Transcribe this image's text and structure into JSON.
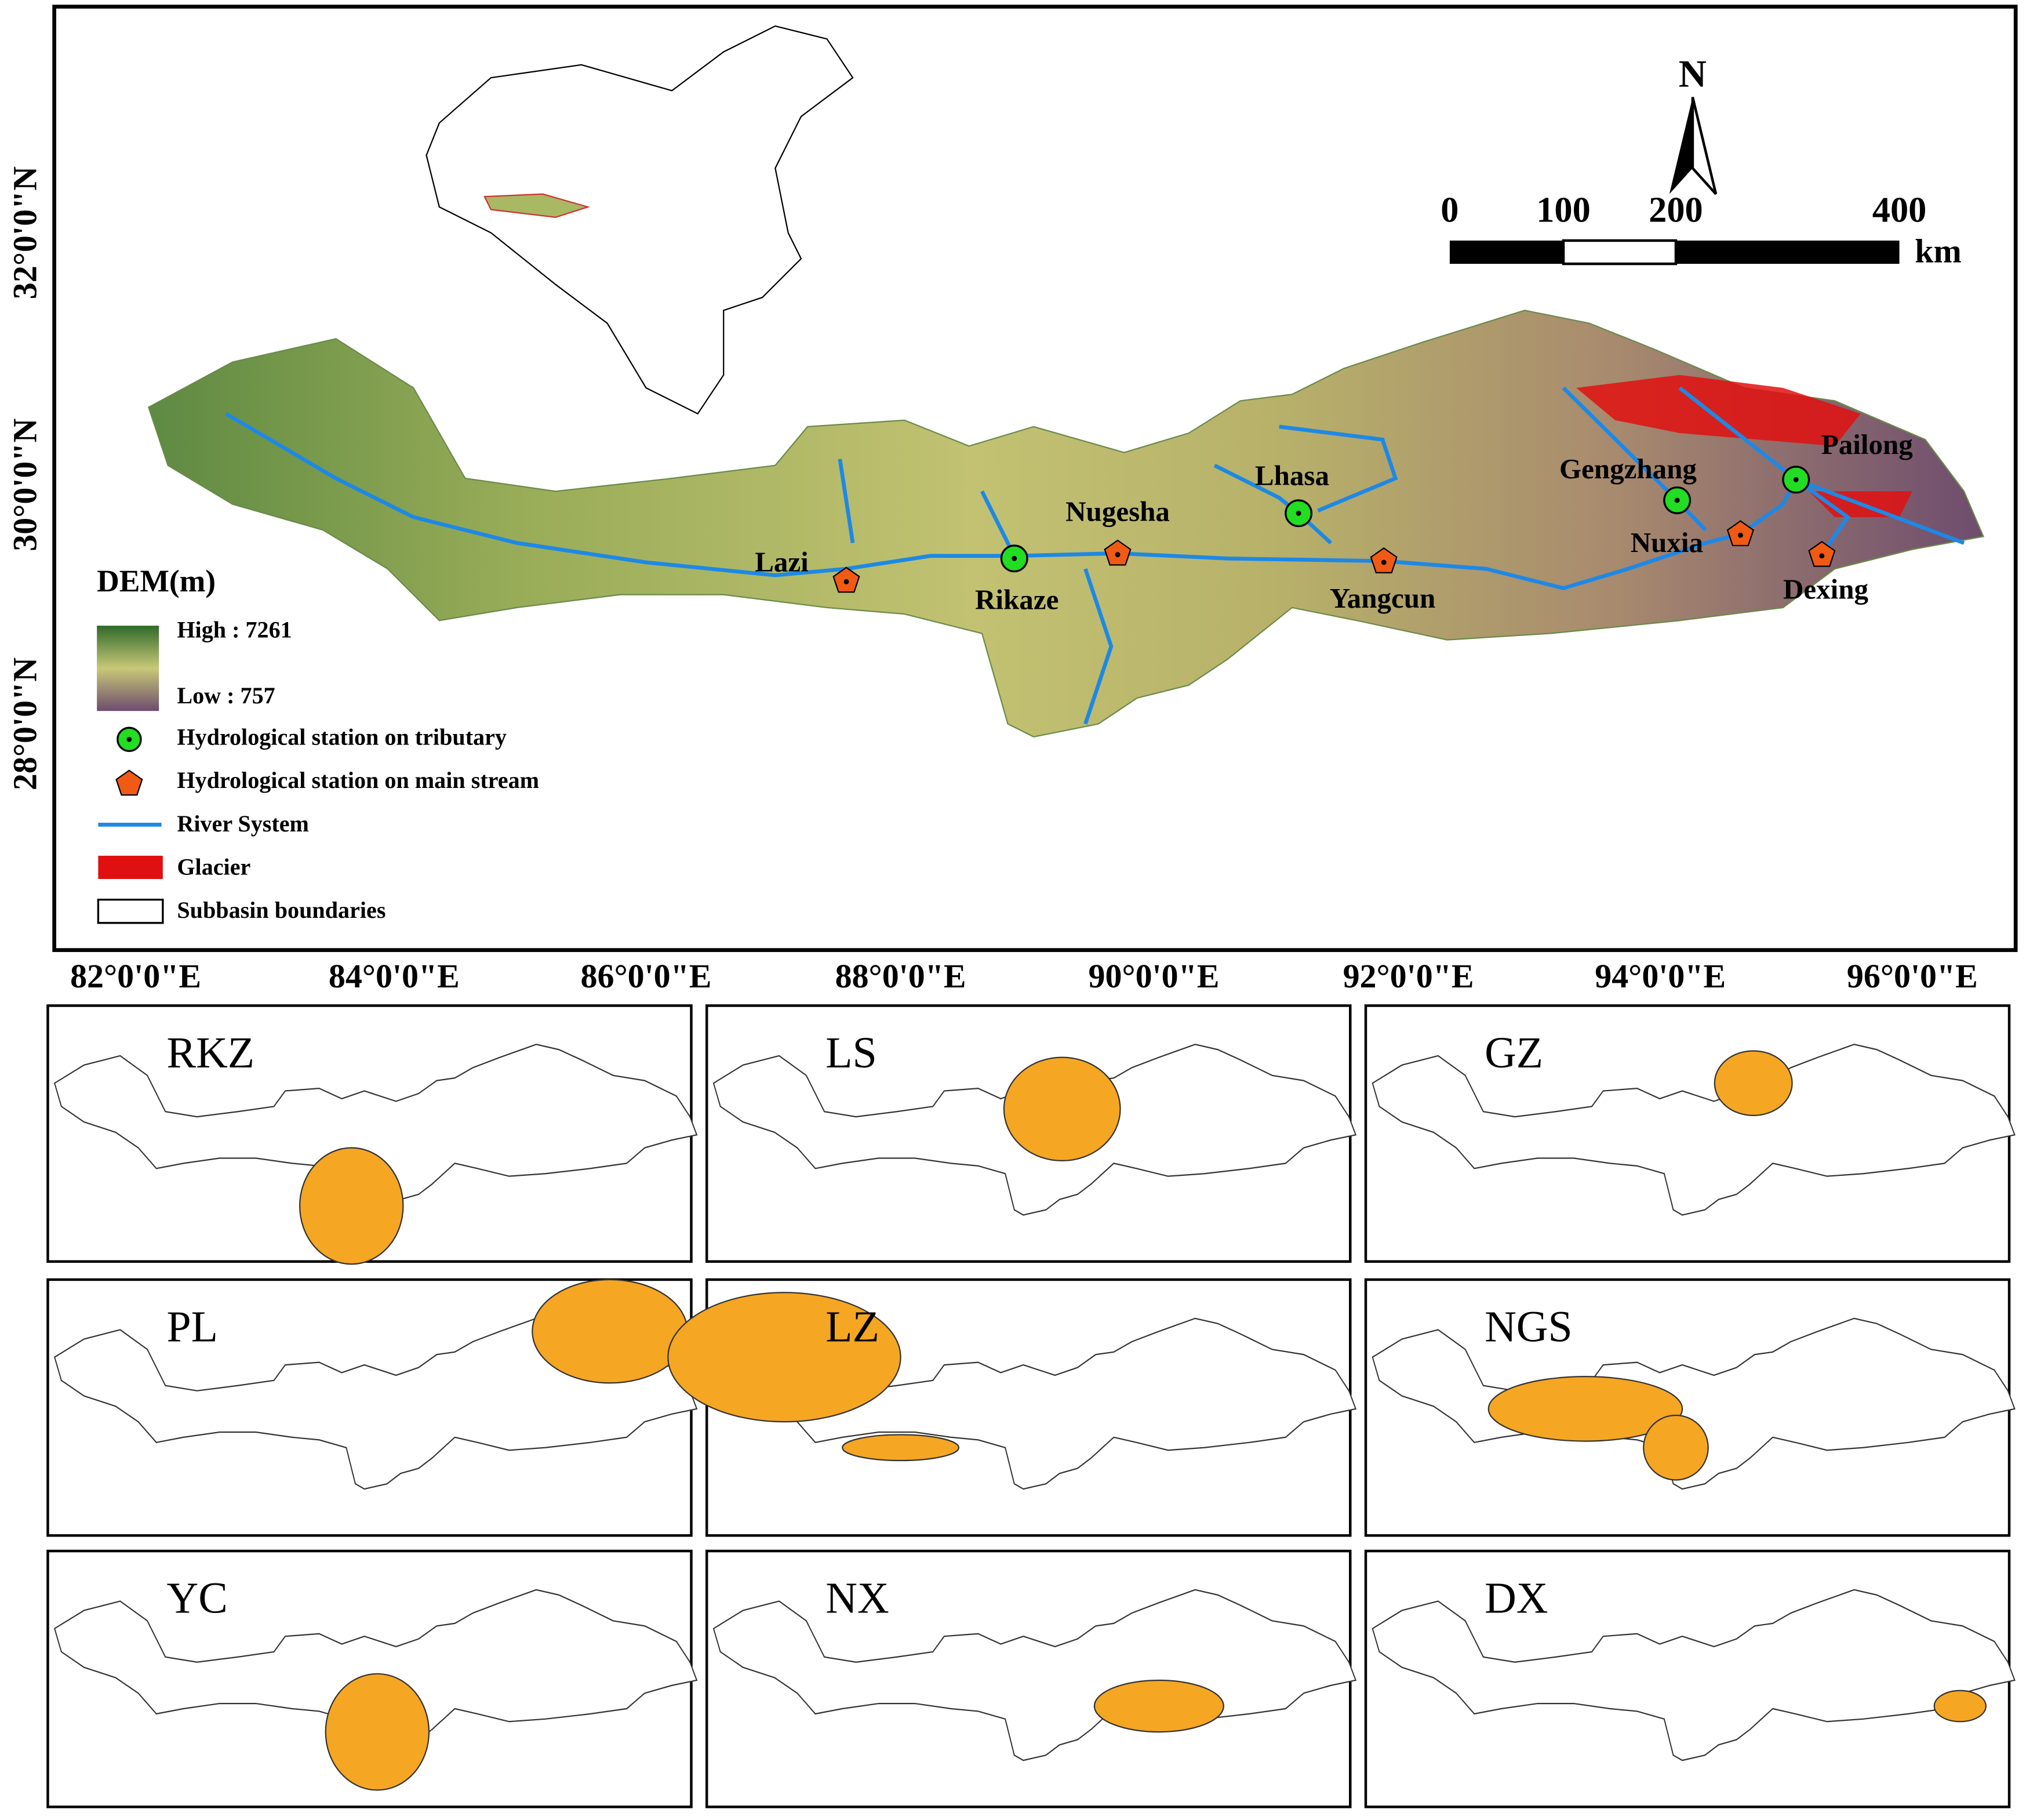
{
  "main_map": {
    "lat_labels": [
      "32°0'0\"N",
      "30°0'0\"N",
      "28°0'0\"N"
    ],
    "lon_labels": [
      "82°0'0\"E",
      "84°0'0\"E",
      "86°0'0\"E",
      "88°0'0\"E",
      "90°0'0\"E",
      "92°0'0\"E",
      "94°0'0\"E",
      "96°0'0\"E"
    ],
    "north_arrow": "N",
    "scale_bar": {
      "ticks": [
        "0",
        "100",
        "200",
        "400"
      ],
      "unit": "km"
    },
    "legend": {
      "title": "DEM(m)",
      "high": "High : 7261",
      "low": "Low : 757",
      "items": [
        "Hydrological station on tributary",
        "Hydrological station on main stream",
        "River System",
        "Glacier",
        "Subbasin boundaries"
      ]
    },
    "stations": [
      {
        "name": "Lazi",
        "on": "main stream"
      },
      {
        "name": "Rikaze",
        "on": "tributary"
      },
      {
        "name": "Nugesha",
        "on": "main stream"
      },
      {
        "name": "Lhasa",
        "on": "tributary"
      },
      {
        "name": "Yangcun",
        "on": "main stream"
      },
      {
        "name": "Gengzhang",
        "on": "tributary"
      },
      {
        "name": "Nuxia",
        "on": "main stream"
      },
      {
        "name": "Pailong",
        "on": "tributary"
      },
      {
        "name": "Dexing",
        "on": "main stream"
      }
    ]
  },
  "panels": [
    {
      "label": "RKZ"
    },
    {
      "label": "LS"
    },
    {
      "label": "GZ"
    },
    {
      "label": "PL"
    },
    {
      "label": "LZ"
    },
    {
      "label": "NGS"
    },
    {
      "label": "YC"
    },
    {
      "label": "NX"
    },
    {
      "label": "DX"
    }
  ]
}
